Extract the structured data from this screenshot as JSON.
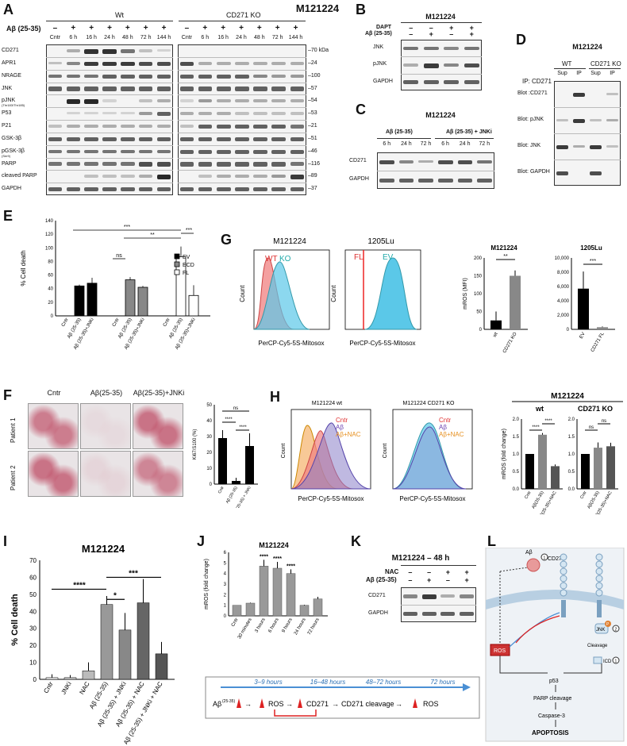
{
  "panel_labels": [
    "A",
    "B",
    "C",
    "D",
    "E",
    "F",
    "G",
    "H",
    "I",
    "J",
    "K",
    "L"
  ],
  "panelA": {
    "title": "M121224",
    "group_wt": "Wt",
    "group_ko": "CD271 KO",
    "treatment": "Aβ (25-35)",
    "signs": [
      "–",
      "+",
      "+",
      "+",
      "+",
      "+",
      "+"
    ],
    "timepoints": [
      "Cntr",
      "6 h",
      "16 h",
      "24 h",
      "48 h",
      "72 h",
      "144 h"
    ],
    "rows": [
      "CD271",
      "APR1",
      "NRAGE",
      "JNK",
      "pJNK",
      "P53",
      "P21",
      "GSK-3β",
      "pGSK-3β",
      "PARP",
      "cleaved PARP",
      "GAPDH"
    ],
    "pjnk_sub": "(Thr183/Thr185)",
    "pgsk_sub": "(Ser9)",
    "mw": [
      "–70 kDa",
      "–24",
      "–100",
      "–57",
      "–54",
      "–53",
      "–21",
      "–51",
      "–46",
      "–116",
      "–89",
      "–37"
    ]
  },
  "panelB": {
    "title": "M121224",
    "dapt": "DAPT",
    "abeta": "Aβ (25-35)",
    "dapt_signs": [
      "–",
      "–",
      "+",
      "+"
    ],
    "abeta_signs": [
      "–",
      "+",
      "–",
      "+"
    ],
    "rows": [
      "JNK",
      "pJNK",
      "GAPDH"
    ]
  },
  "panelC": {
    "title": "M121224",
    "group1": "Aβ (25-35)",
    "group2": "Aβ (25-35) + JNKi",
    "times": [
      "6 h",
      "24 h",
      "72 h",
      "6 h",
      "24 h",
      "72 h"
    ],
    "rows": [
      "CD271",
      "GAPDH"
    ]
  },
  "panelD": {
    "title": "M121224",
    "wt": "WT",
    "ko": "CD271 KO",
    "ip": "IP: CD271",
    "cols": [
      "Sup",
      "IP",
      "Sup",
      "IP"
    ],
    "rows": [
      "Blot :CD271",
      "Blot: pJNK",
      "Blot: JNK",
      "Blot: GAPDH"
    ]
  },
  "panelE": {
    "ylabel": "% Cell death",
    "yticks": [
      "0",
      "20",
      "40",
      "60",
      "80",
      "100",
      "120",
      "140"
    ],
    "legend": [
      "EV",
      "ECD",
      "FL"
    ],
    "xlabels": [
      "Cntr",
      "Aβ (25-35)",
      "Aβ (25-35)+JNKi",
      "Cntr",
      "Aβ (25-35)",
      "Aβ (25-35)+JNKi",
      "Cntr",
      "Aβ (25-35)",
      "Aβ (25-35)+JNKi"
    ],
    "sig": [
      "***",
      "**",
      "***",
      "ns"
    ]
  },
  "panelF": {
    "cols": [
      "Cntr",
      "Aβ(25-35)",
      "Aβ(25-35)+JNKi"
    ],
    "rows": [
      "Patient 1",
      "Patient 2"
    ],
    "ylabel": "Ki67/S100 (%)",
    "yticks": [
      "0",
      "10",
      "20",
      "30",
      "40",
      "50"
    ],
    "xlabels": [
      "Cntr",
      "Aβ (25-35)",
      "Aβ (25-35) + JNKi"
    ],
    "sig": [
      "****",
      "****",
      "ns"
    ]
  },
  "panelG": {
    "hist1_title": "M121224",
    "hist1_wt": "WT",
    "hist1_ko": "KO",
    "hist2_title": "1205Lu",
    "hist2_fl": "FL",
    "hist2_ev": "EV",
    "xlabel": "PerCP-Cy5-5S-Mitosox",
    "ylabel": "Count",
    "bar1_title": "M121224",
    "bar1_ylabel": "mROS (MFI)",
    "bar1_yticks": [
      "0",
      "50",
      "100",
      "150",
      "200"
    ],
    "bar1_x": [
      "wt",
      "CD271 KO"
    ],
    "bar1_sig": "**",
    "bar2_title": "1205Lu",
    "bar2_yticks": [
      "0",
      "2,000",
      "4,000",
      "6,000",
      "8,000",
      "10,000"
    ],
    "bar2_x": [
      "EV",
      "CD271 FL"
    ],
    "bar2_sig": "***"
  },
  "panelH": {
    "hist1_title": "M121224 wt",
    "hist2_title": "M121224 CD271 KO",
    "legend": [
      "Cntr",
      "Aβ",
      "Aβ+NAC"
    ],
    "xlabel": "PerCP-Cy5-5S-Mitosox",
    "ylabel": "Count",
    "bar_title": "M121224",
    "sub1": "wt",
    "sub2": "CD271 KO",
    "ylabel_bar": "mROS (fold change)",
    "yticks": [
      "0.0",
      "0.5",
      "1.0",
      "1.5",
      "2.0"
    ],
    "xlabels": [
      "Cntr",
      "Aβ(25-35)",
      "Aβ(25-35)+NAC"
    ],
    "sig": [
      "****",
      "****",
      "ns",
      "ns"
    ]
  },
  "panelI": {
    "title": "M121224",
    "ylabel": "% Cell death",
    "yticks": [
      "0",
      "10",
      "20",
      "30",
      "40",
      "50",
      "60",
      "70"
    ],
    "xlabels": [
      "Cntr",
      "JNKi",
      "NAC",
      "Aβ (25-35)",
      "Aβ (25-35) + JNKi",
      "Aβ (25-35) + NAC",
      "Aβ (25-35) + JNKi + NAC"
    ],
    "sig": [
      "****",
      "*",
      "***"
    ]
  },
  "panelJ": {
    "title": "M121224",
    "ylabel": "mROS (fold change)",
    "yticks": [
      "0",
      "1",
      "2",
      "3",
      "4",
      "5",
      "6"
    ],
    "xlabels": [
      "Cntr",
      "30 minutes",
      "3 hours",
      "6 hours",
      "9 hours",
      "24 hours",
      "72 hours"
    ],
    "sig": "****",
    "timeline": [
      "3–9 hours",
      "16–48 hours",
      "48–72 hours",
      "72 hours"
    ],
    "flow": [
      "Aβ",
      "(25-35)",
      "→",
      "ROS",
      "→",
      "CD271",
      "→",
      "CD271 cleavage",
      "→",
      "ROS"
    ]
  },
  "panelK": {
    "title": "M121224 – 48 h",
    "nac": "NAC",
    "abeta": "Aβ (25-35)",
    "nac_signs": [
      "–",
      "–",
      "+",
      "+"
    ],
    "abeta_signs": [
      "–",
      "+",
      "–",
      "+"
    ],
    "rows": [
      "CD271",
      "GAPDH"
    ]
  },
  "panelL": {
    "abeta": "Aβ",
    "cd271": "CD271",
    "jnk": "JNK",
    "p": "P",
    "ros": "ROS",
    "cleavage": "Cleavage",
    "icd": "ICD",
    "p53": "p53",
    "parp": "PARP cleavage",
    "casp": "Caspase-3",
    "apop": "APOPTOSIS",
    "n1": "1",
    "n2": "2"
  },
  "colors": {
    "red_ko": "#f08080",
    "blue": "#5bc8e8",
    "purple": "#8a7fc8",
    "orange": "#f5b26b",
    "bar_black": "#111111",
    "bar_grey": "#888888"
  }
}
